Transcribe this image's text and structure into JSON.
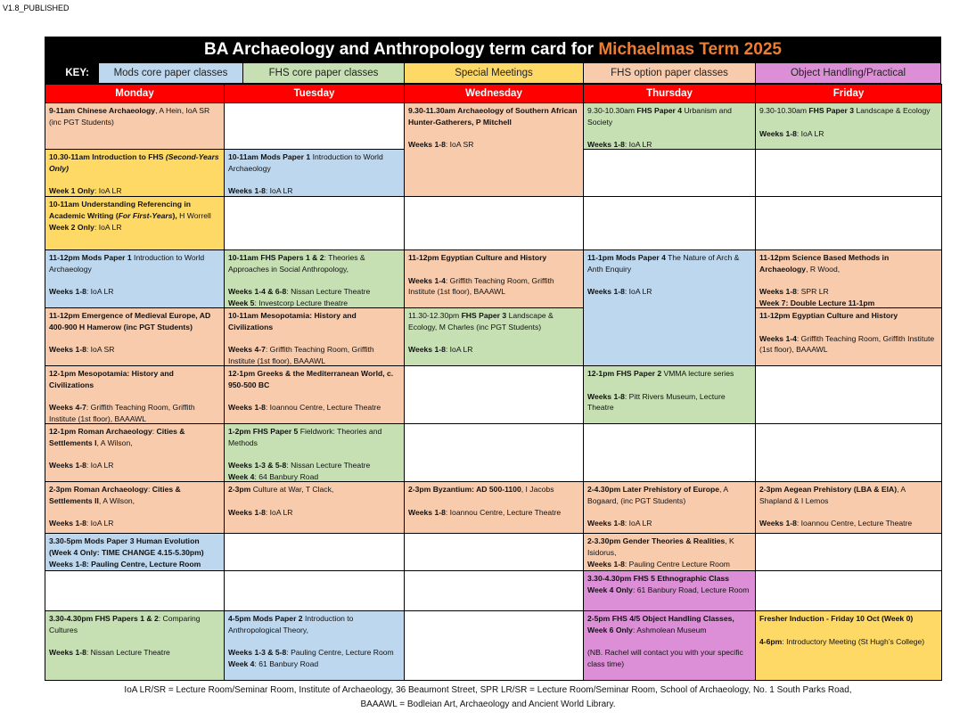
{
  "version": "V1.8_PUBLISHED",
  "title": {
    "prefix": "BA Archaeology and Anthropology term card for ",
    "term": "Michaelmas Term 2025"
  },
  "colors": {
    "mods": "#bdd7ee",
    "fhs_core": "#c6e0b4",
    "special": "#ffd966",
    "option": "#f8cbad",
    "object": "#dc8fd6",
    "day_header": "#ff0000",
    "term": "#ed7d31"
  },
  "key": {
    "label": "KEY:",
    "items": [
      {
        "type": "mods",
        "label": "Mods core paper classes"
      },
      {
        "type": "fhs_core",
        "label": "FHS core paper classes"
      },
      {
        "type": "special",
        "label": "Special Meetings"
      },
      {
        "type": "option",
        "label": "FHS option paper classes"
      },
      {
        "type": "object",
        "label": "Object Handling/Practical"
      }
    ]
  },
  "days": [
    {
      "name": "Monday",
      "cells": [
        {
          "type": "option",
          "span": 1,
          "paras": [
            [
              {
                "b": "9-11am Chinese Archaeology"
              },
              {
                "t": ", A Hein, IoA SR (inc PGT Students)"
              }
            ]
          ]
        },
        {
          "type": "special",
          "span": 1,
          "paras": [
            [
              {
                "b": "10.30-11am Introduction to FHS "
              },
              {
                "bi": "(Second-Years Only)"
              }
            ],
            [],
            [
              {
                "b": "Week 1 Only"
              },
              {
                "t": ": IoA LR"
              }
            ]
          ]
        },
        {
          "type": "special",
          "span": 1,
          "paras": [
            [
              {
                "b": "10-11am Understanding Referencing in Academic Writing ("
              },
              {
                "bi": "For First-Years"
              },
              {
                "b": "), "
              },
              {
                "t": "H Worrell"
              }
            ],
            [
              {
                "b": "Week 2 Only"
              },
              {
                "t": ": IoA LR"
              }
            ]
          ]
        },
        {
          "type": "mods",
          "span": 1,
          "paras": [
            [
              {
                "b": "11-12pm Mods Paper 1"
              },
              {
                "t": " Introduction to World Archaeology"
              }
            ],
            [],
            [
              {
                "b": "Weeks 1-8"
              },
              {
                "t": ": IoA LR"
              }
            ]
          ]
        },
        {
          "type": "option",
          "span": 1,
          "paras": [
            [
              {
                "b": "11-12pm Emergence of Medieval Europe, AD 400-900 H Hamerow (inc PGT Students)"
              }
            ],
            [],
            [
              {
                "b": "Weeks 1-8"
              },
              {
                "t": ": IoA SR"
              }
            ]
          ]
        },
        {
          "type": "option",
          "span": 1,
          "paras": [
            [
              {
                "b": "12-1pm Mesopotamia: History and Civilizations"
              }
            ],
            [],
            [
              {
                "b": "Weeks 4-7"
              },
              {
                "t": ": Griffith Teaching Room, Griffith Institute (1st floor), BAAAWL"
              }
            ]
          ]
        },
        {
          "type": "option",
          "span": 1,
          "paras": [
            [
              {
                "b": "12-1pm Roman Archaeology"
              },
              {
                "t": ": "
              },
              {
                "b": "Cities & Settlements I"
              },
              {
                "t": ", A Wilson,"
              }
            ],
            [],
            [
              {
                "b": "Weeks 1-8"
              },
              {
                "t": ": IoA LR"
              }
            ]
          ]
        },
        {
          "type": "option",
          "span": 1,
          "paras": [
            [
              {
                "b": "2-3pm Roman Archaeology"
              },
              {
                "t": ": "
              },
              {
                "b": "Cities & Settlements II"
              },
              {
                "t": ", A Wilson,"
              }
            ],
            [],
            [
              {
                "b": "Weeks 1-8"
              },
              {
                "t": ":  IoA LR"
              }
            ]
          ]
        },
        {
          "type": "mods",
          "span": 1,
          "paras": [
            [
              {
                "b": "3.30-5pm Mods Paper 3 Human Evolution (Week 4 Only: TIME CHANGE 4.15-5.30pm)"
              }
            ],
            [
              {
                "b": "Weeks 1-8: Pauling Centre, Lecture Room"
              }
            ]
          ]
        },
        {
          "type": "none",
          "span": 1,
          "paras": []
        },
        {
          "type": "fhs_core",
          "span": 1,
          "paras": [
            [
              {
                "b": "3.30-4.30pm FHS Papers 1 & 2"
              },
              {
                "t": ": Comparing Cultures"
              }
            ],
            [],
            [
              {
                "b": "Weeks 1-8"
              },
              {
                "t": ": Nissan Lecture Theatre"
              }
            ]
          ]
        }
      ]
    },
    {
      "name": "Tuesday",
      "cells": [
        {
          "type": "none",
          "span": 1,
          "paras": []
        },
        {
          "type": "mods",
          "span": 1,
          "paras": [
            [
              {
                "b": "10-11am Mods Paper 1"
              },
              {
                "t": " Introduction to World Archaeology"
              }
            ],
            [],
            [
              {
                "b": "Weeks 1-8"
              },
              {
                "t": ": IoA LR"
              }
            ]
          ]
        },
        {
          "type": "none",
          "span": 1,
          "paras": []
        },
        {
          "type": "fhs_core",
          "span": 1,
          "paras": [
            [
              {
                "b": "10-11am FHS Papers 1 & 2"
              },
              {
                "t": ": Theories & Approaches in Social Anthropology,"
              }
            ],
            [],
            [
              {
                "b": "Weeks 1-4 & 6-8"
              },
              {
                "t": ": Nissan Lecture Theatre"
              }
            ],
            [
              {
                "b": "Week 5"
              },
              {
                "t": ": Investcorp Lecture theatre"
              }
            ]
          ]
        },
        {
          "type": "option",
          "span": 1,
          "paras": [
            [
              {
                "b": "10-11am Mesopotamia: History and Civilizations"
              }
            ],
            [],
            [
              {
                "b": "Weeks 4-7"
              },
              {
                "t": ": Griffith Teaching Room, Griffith Institute (1st floor), BAAAWL"
              }
            ]
          ]
        },
        {
          "type": "option",
          "span": 1,
          "paras": [
            [
              {
                "b": "12-1pm Greeks & the Mediterranean World, c. 950-500 BC"
              }
            ],
            [],
            [
              {
                "b": "Weeks 1-8"
              },
              {
                "t": ": Ioannou Centre, Lecture Theatre"
              }
            ]
          ]
        },
        {
          "type": "fhs_core",
          "span": 1,
          "paras": [
            [
              {
                "b": "1-2pm FHS Paper 5"
              },
              {
                "t": " Fieldwork: Theories and Methods"
              }
            ],
            [],
            [
              {
                "b": "Weeks 1-3 & 5-8"
              },
              {
                "t": ": Nissan Lecture Theatre"
              }
            ],
            [
              {
                "b": "Week 4"
              },
              {
                "t": ": 64 Banbury Road"
              }
            ]
          ]
        },
        {
          "type": "option",
          "span": 1,
          "paras": [
            [
              {
                "b": "2-3pm"
              },
              {
                "t": " Culture at War, T Clack,"
              }
            ],
            [],
            [
              {
                "b": "Weeks 1-8"
              },
              {
                "t": ":  IoA LR"
              }
            ]
          ]
        },
        {
          "type": "none",
          "span": 1,
          "paras": []
        },
        {
          "type": "none",
          "span": 1,
          "paras": []
        },
        {
          "type": "mods",
          "span": 1,
          "paras": [
            [
              {
                "b": "4-5pm Mods Paper 2"
              },
              {
                "t": " Introduction to Anthropological Theory,"
              }
            ],
            [],
            [
              {
                "b": "Weeks 1-3 & 5-8"
              },
              {
                "t": ": Pauling Centre, Lecture Room"
              }
            ],
            [
              {
                "b": "Week 4"
              },
              {
                "t": ": 61 Banbury Road"
              }
            ]
          ]
        }
      ]
    },
    {
      "name": "Wednesday",
      "cells": [
        {
          "type": "option",
          "span": 2,
          "paras": [
            [
              {
                "b": "9.30-11.30am Archaeology of Southern African Hunter-Gatherers, P Mitchell"
              }
            ],
            [],
            [
              {
                "b": "Weeks 1-8"
              },
              {
                "t": ": IoA SR"
              }
            ]
          ]
        },
        {
          "type": "none",
          "span": 1,
          "paras": []
        },
        {
          "type": "option",
          "span": 1,
          "paras": [
            [
              {
                "b": "11-12pm Egyptian Culture and History"
              }
            ],
            [],
            [
              {
                "b": "Weeks 1-4"
              },
              {
                "t": ": Griffith Teaching Room, Griffith Institute (1st floor), BAAAWL"
              }
            ]
          ]
        },
        {
          "type": "fhs_core",
          "span": 1,
          "paras": [
            [
              {
                "t": "11.30-12.30pm "
              },
              {
                "b": "FHS Paper 3"
              },
              {
                "t": " Landscape & Ecology, M Charles (inc PGT Students)"
              }
            ],
            [],
            [
              {
                "b": "Weeks 1-8"
              },
              {
                "t": ": IoA LR"
              }
            ]
          ]
        },
        {
          "type": "none",
          "span": 1,
          "paras": []
        },
        {
          "type": "none",
          "span": 1,
          "paras": []
        },
        {
          "type": "option",
          "span": 1,
          "paras": [
            [
              {
                "b": "2-3pm Byzantium: AD 500-1100"
              },
              {
                "t": ", I Jacobs"
              }
            ],
            [],
            [
              {
                "b": "Weeks 1-8"
              },
              {
                "t": ": Ioannou Centre, Lecture Theatre"
              }
            ]
          ]
        },
        {
          "type": "none",
          "span": 1,
          "paras": []
        },
        {
          "type": "none",
          "span": 1,
          "paras": []
        },
        {
          "type": "none",
          "span": 1,
          "paras": []
        }
      ]
    },
    {
      "name": "Thursday",
      "cells": [
        {
          "type": "fhs_core",
          "span": 1,
          "paras": [
            [
              {
                "t": "9.30-10.30am "
              },
              {
                "b": "FHS Paper 4"
              },
              {
                "t": " Urbanism and Society"
              }
            ],
            [],
            [
              {
                "b": "Weeks 1-8"
              },
              {
                "t": ": IoA LR"
              }
            ]
          ]
        },
        {
          "type": "none",
          "span": 1,
          "paras": []
        },
        {
          "type": "none",
          "span": 1,
          "paras": []
        },
        {
          "type": "mods",
          "span": 2,
          "paras": [
            [
              {
                "b": "11-1pm Mods Paper 4"
              },
              {
                "t": " The Nature of Arch & Anth Enquiry"
              }
            ],
            [],
            [
              {
                "b": "Weeks 1-8"
              },
              {
                "t": ": IoA LR"
              }
            ]
          ]
        },
        {
          "type": "fhs_core",
          "span": 1,
          "paras": [
            [
              {
                "b": "12-1pm FHS Paper 2"
              },
              {
                "t": " VMMA lecture series"
              }
            ],
            [],
            [
              {
                "b": "Weeks 1-8"
              },
              {
                "t": ": Pitt Rivers Museum, Lecture Theatre"
              }
            ]
          ]
        },
        {
          "type": "none",
          "span": 1,
          "paras": []
        },
        {
          "type": "option",
          "span": 1,
          "paras": [
            [
              {
                "b": "2-4.30pm Later Prehistory of Europe"
              },
              {
                "t": ", A Bogaard, (inc PGT Students)"
              }
            ],
            [],
            [
              {
                "b": "Weeks 1-8"
              },
              {
                "t": ": IoA LR"
              }
            ]
          ]
        },
        {
          "type": "option",
          "span": 1,
          "paras": [
            [
              {
                "b": "2-3.30pm Gender Theories & Realities"
              },
              {
                "t": ", K Isidorus,"
              }
            ],
            [
              {
                "b": "Weeks 1-8"
              },
              {
                "t": ": Pauling Centre Lecture Room"
              }
            ]
          ]
        },
        {
          "type": "object",
          "span": 1,
          "paras": [
            [
              {
                "b": "3.30-4.30pm FHS 5 Ethnographic Class"
              }
            ],
            [
              {
                "b": "Week 4 Only"
              },
              {
                "t": ": 61 Banbury Road, Lecture Room"
              }
            ]
          ]
        },
        {
          "type": "object",
          "span": 1,
          "paras": [
            [
              {
                "b": "2-5pm FHS 4/5 Object Handling Classes, Week 6 Only"
              },
              {
                "t": ": Ashmolean Museum"
              }
            ],
            [],
            [
              {
                "t": "(NB. Rachel will contact you with your specific class time)"
              }
            ]
          ]
        }
      ]
    },
    {
      "name": "Friday",
      "cells": [
        {
          "type": "fhs_core",
          "span": 1,
          "paras": [
            [
              {
                "t": "9.30-10.30am "
              },
              {
                "b": "FHS Paper 3"
              },
              {
                "t": " Landscape & Ecology"
              }
            ],
            [],
            [
              {
                "b": "Weeks 1-8"
              },
              {
                "t": ": IoA LR"
              }
            ]
          ]
        },
        {
          "type": "none",
          "span": 1,
          "paras": []
        },
        {
          "type": "none",
          "span": 1,
          "paras": []
        },
        {
          "type": "option",
          "span": 1,
          "paras": [
            [
              {
                "b": "11-12pm Science Based Methods in Archaeology"
              },
              {
                "t": ", R Wood,"
              }
            ],
            [],
            [
              {
                "b": "Weeks 1-8"
              },
              {
                "t": ": SPR LR"
              }
            ],
            [
              {
                "b": "Week 7: Double Lecture 11-1pm"
              }
            ]
          ]
        },
        {
          "type": "option",
          "span": 1,
          "paras": [
            [
              {
                "b": "11-12pm Egyptian Culture and History"
              }
            ],
            [],
            [
              {
                "b": "Weeks 1-4"
              },
              {
                "t": ": Griffith Teaching Room, Griffith Institute (1st floor), BAAAWL"
              }
            ]
          ]
        },
        {
          "type": "none",
          "span": 1,
          "paras": []
        },
        {
          "type": "none",
          "span": 1,
          "paras": []
        },
        {
          "type": "option",
          "span": 1,
          "paras": [
            [
              {
                "b": "2-3pm Aegean Prehistory (LBA & EIA)"
              },
              {
                "t": ", A Shapland & I Lemos"
              }
            ],
            [],
            [
              {
                "b": "Weeks 1-8"
              },
              {
                "t": ": Ioannou Centre, Lecture Theatre"
              }
            ]
          ]
        },
        {
          "type": "none",
          "span": 1,
          "paras": []
        },
        {
          "type": "none",
          "span": 1,
          "paras": []
        },
        {
          "type": "special",
          "span": 1,
          "paras": [
            [
              {
                "b": "Fresher Induction - Friday 10 Oct (Week 0)"
              }
            ],
            [],
            [
              {
                "b": "4-6pm"
              },
              {
                "t": ": Introductory Meeting (St Hugh’s College)"
              }
            ]
          ]
        }
      ]
    }
  ],
  "footer": {
    "line1": "IoA LR/SR = Lecture Room/Seminar Room, Institute of Archaeology, 36 Beaumont Street, SPR LR/SR = Lecture Room/Seminar Room, School of Archaeology, No. 1 South Parks Road,",
    "line2": "BAAAWL = Bodleian Art, Archaeology and Ancient World Library."
  }
}
